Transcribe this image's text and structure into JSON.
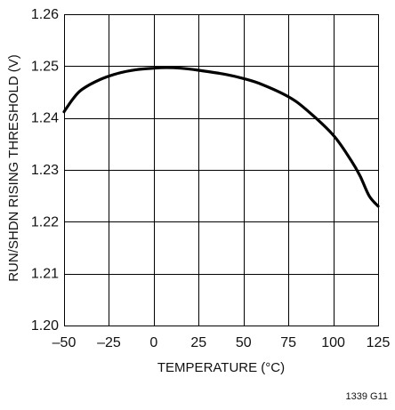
{
  "chart_data": {
    "type": "line",
    "title": "",
    "xlabel": "TEMPERATURE (°C)",
    "ylabel": "RUN/SHDN RISING THRESHOLD (V)",
    "xlim": [
      -50,
      125
    ],
    "ylim": [
      1.2,
      1.26
    ],
    "x_ticks": [
      -50,
      -25,
      0,
      25,
      50,
      75,
      100,
      125
    ],
    "x_tick_labels": [
      "–50",
      "–25",
      "0",
      "25",
      "50",
      "75",
      "100",
      "125"
    ],
    "y_ticks": [
      1.2,
      1.21,
      1.22,
      1.23,
      1.24,
      1.25,
      1.26
    ],
    "y_tick_labels": [
      "1.20",
      "1.21",
      "1.22",
      "1.23",
      "1.24",
      "1.25",
      "1.26"
    ],
    "grid": true,
    "series": [
      {
        "x": [
          -50,
          -45,
          -40,
          -30,
          -20,
          -10,
          0,
          7,
          15,
          25,
          40,
          50,
          60,
          75,
          85,
          100,
          110,
          115,
          120,
          125
        ],
        "y": [
          1.2412,
          1.2437,
          1.2455,
          1.2474,
          1.2486,
          1.2493,
          1.2496,
          1.2497,
          1.2496,
          1.2492,
          1.2484,
          1.2476,
          1.2465,
          1.2441,
          1.2416,
          1.2367,
          1.2318,
          1.2288,
          1.225,
          1.223
        ]
      }
    ],
    "figure_id": "1339 G11"
  }
}
